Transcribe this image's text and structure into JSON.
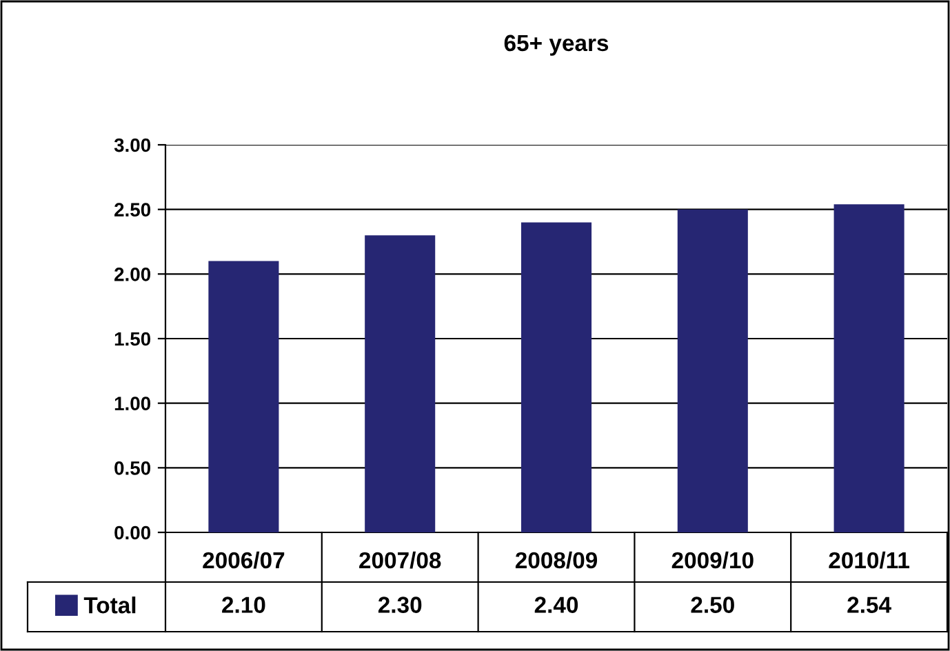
{
  "chart_data": {
    "type": "bar",
    "title": "65+ years",
    "categories": [
      "2006/07",
      "2007/08",
      "2008/09",
      "2009/10",
      "2010/11"
    ],
    "series": [
      {
        "name": "Total",
        "color": "#262673",
        "values": [
          2.1,
          2.3,
          2.4,
          2.5,
          2.54
        ],
        "value_labels": [
          "2.10",
          "2.30",
          "2.40",
          "2.50",
          "2.54"
        ]
      }
    ],
    "ylim": [
      0,
      3
    ],
    "yticks": [
      {
        "value": 0,
        "label": "0.00"
      },
      {
        "value": 0.5,
        "label": "0.50"
      },
      {
        "value": 1,
        "label": "1.00"
      },
      {
        "value": 1.5,
        "label": "1.50"
      },
      {
        "value": 2,
        "label": "2.00"
      },
      {
        "value": 2.5,
        "label": "2.50"
      },
      {
        "value": 3,
        "label": "3.00"
      }
    ],
    "grid": "y",
    "legend": "bottom left"
  }
}
